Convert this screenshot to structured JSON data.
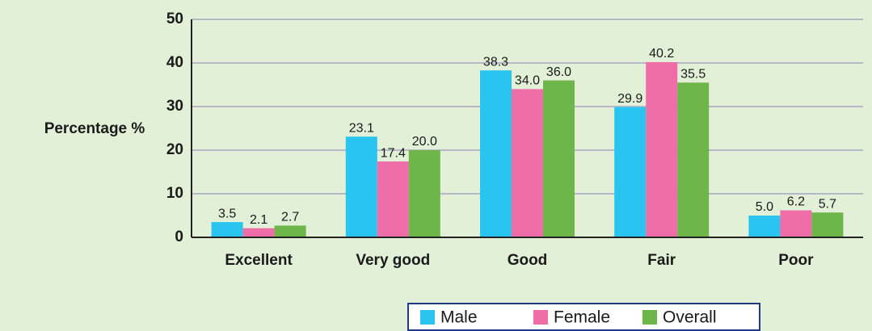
{
  "chart_data": {
    "type": "bar",
    "y_label": "Percentage %",
    "categories": [
      "Excellent",
      "Very good",
      "Good",
      "Fair",
      "Poor"
    ],
    "series": [
      {
        "name": "Male",
        "color": "#29c4f0",
        "values": [
          3.5,
          23.1,
          38.3,
          29.9,
          5.0
        ],
        "value_labels": [
          "3.5",
          "23.1",
          "38.3",
          "29.9",
          "5.0"
        ]
      },
      {
        "name": "Female",
        "color": "#f06ea8",
        "values": [
          2.1,
          17.4,
          34.0,
          40.2,
          6.2
        ],
        "value_labels": [
          "2.1",
          "17.4",
          "34.0",
          "40.2",
          "6.2"
        ]
      },
      {
        "name": "Overall",
        "color": "#6fb64a",
        "values": [
          2.7,
          20.0,
          36.0,
          35.5,
          5.7
        ],
        "value_labels": [
          "2.7",
          "20.0",
          "36.0",
          "35.5",
          "5.7"
        ]
      }
    ],
    "ylim": [
      0,
      50
    ],
    "yticks": [
      0,
      10,
      20,
      30,
      40,
      50
    ],
    "grid": true,
    "legend": "bottom"
  }
}
